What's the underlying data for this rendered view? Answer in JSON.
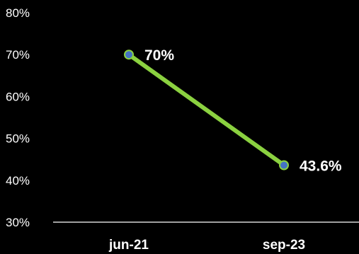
{
  "chart_data": {
    "type": "line",
    "title": "",
    "xlabel": "",
    "ylabel": "",
    "categories": [
      "jun-21",
      "sep-23"
    ],
    "series": [
      {
        "values": [
          70,
          43.6
        ],
        "data_labels": [
          "70%",
          "43.6%"
        ],
        "line_color": "#8BD140",
        "marker_color": "#4472C4",
        "marker_edge_color": "#8BD140"
      }
    ],
    "ylim": [
      30,
      80
    ],
    "y_ticks": [
      30,
      40,
      50,
      60,
      70,
      80
    ],
    "y_tick_labels": [
      "30%",
      "40%",
      "50%",
      "60%",
      "70%",
      "80%"
    ],
    "grid": false,
    "legend": "none",
    "background": "#000000",
    "text_color": "#ffffff",
    "axis_color": "#ffffff"
  }
}
